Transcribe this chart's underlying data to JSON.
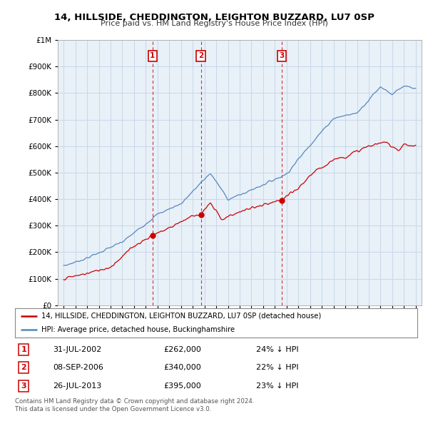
{
  "title": "14, HILLSIDE, CHEDDINGTON, LEIGHTON BUZZARD, LU7 0SP",
  "subtitle": "Price paid vs. HM Land Registry's House Price Index (HPI)",
  "red_label": "14, HILLSIDE, CHEDDINGTON, LEIGHTON BUZZARD, LU7 0SP (detached house)",
  "blue_label": "HPI: Average price, detached house, Buckinghamshire",
  "footer1": "Contains HM Land Registry data © Crown copyright and database right 2024.",
  "footer2": "This data is licensed under the Open Government Licence v3.0.",
  "transactions": [
    {
      "num": 1,
      "date": "31-JUL-2002",
      "price": 262000,
      "pct": "24%",
      "dir": "↓"
    },
    {
      "num": 2,
      "date": "08-SEP-2006",
      "price": 340000,
      "pct": "22%",
      "dir": "↓"
    },
    {
      "num": 3,
      "date": "26-JUL-2013",
      "price": 395000,
      "pct": "23%",
      "dir": "↓"
    }
  ],
  "transaction_years": [
    2002.58,
    2006.69,
    2013.58
  ],
  "transaction_prices": [
    262000,
    340000,
    395000
  ],
  "ylim": [
    0,
    1000000
  ],
  "yticks": [
    0,
    100000,
    200000,
    300000,
    400000,
    500000,
    600000,
    700000,
    800000,
    900000,
    1000000
  ],
  "red_color": "#cc0000",
  "blue_color": "#5588bb",
  "plot_bg": "#e8f0f8",
  "bg_color": "#ffffff",
  "grid_color": "#c8d8e8"
}
